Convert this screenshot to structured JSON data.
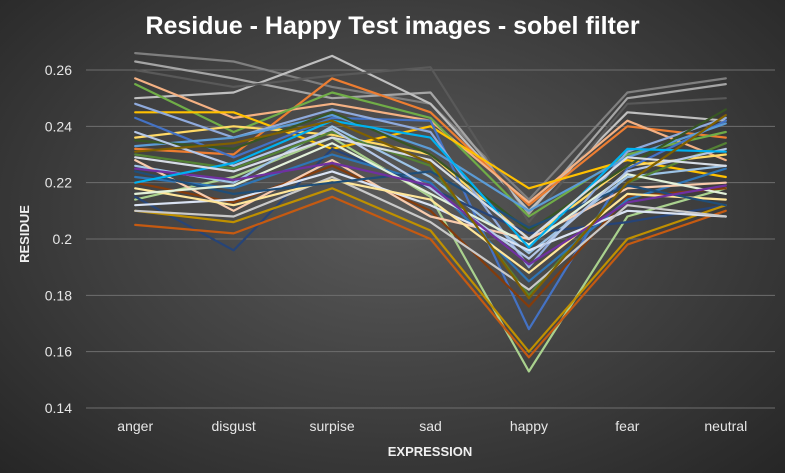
{
  "chart_data": {
    "type": "line",
    "title": "Residue - Happy Test images - sobel filter",
    "xlabel": "EXPRESSION",
    "ylabel": "RESIDUE",
    "categories": [
      "anger",
      "disgust",
      "surpise",
      "sad",
      "happy",
      "fear",
      "neutral"
    ],
    "ylim": [
      0.14,
      0.26
    ],
    "yticks": [
      "0.14",
      "0.16",
      "0.18",
      "0.2",
      "0.22",
      "0.24",
      "0.26"
    ],
    "grid": true,
    "legend": "none",
    "series": [
      {
        "color": "#7f7f7f",
        "values": [
          0.266,
          0.263,
          0.254,
          0.248,
          0.214,
          0.252,
          0.257
        ]
      },
      {
        "color": "#a5a5a5",
        "values": [
          0.263,
          0.257,
          0.25,
          0.252,
          0.209,
          0.25,
          0.255
        ]
      },
      {
        "color": "#bfbfbf",
        "values": [
          0.25,
          0.252,
          0.265,
          0.248,
          0.21,
          0.245,
          0.242
        ]
      },
      {
        "color": "#595959",
        "values": [
          0.26,
          0.254,
          0.258,
          0.261,
          0.206,
          0.248,
          0.25
        ]
      },
      {
        "color": "#ed7d31",
        "values": [
          0.232,
          0.23,
          0.257,
          0.245,
          0.212,
          0.24,
          0.236
        ]
      },
      {
        "color": "#f4b183",
        "values": [
          0.257,
          0.243,
          0.248,
          0.242,
          0.213,
          0.242,
          0.228
        ]
      },
      {
        "color": "#70ad47",
        "values": [
          0.255,
          0.238,
          0.252,
          0.243,
          0.208,
          0.23,
          0.238
        ]
      },
      {
        "color": "#a9d18e",
        "values": [
          0.214,
          0.222,
          0.236,
          0.215,
          0.153,
          0.208,
          0.218
        ]
      },
      {
        "color": "#ffc000",
        "values": [
          0.245,
          0.245,
          0.232,
          0.24,
          0.218,
          0.228,
          0.222
        ]
      },
      {
        "color": "#ffd966",
        "values": [
          0.236,
          0.24,
          0.237,
          0.23,
          0.2,
          0.226,
          0.23
        ]
      },
      {
        "color": "#4472c4",
        "values": [
          0.243,
          0.229,
          0.243,
          0.242,
          0.168,
          0.225,
          0.242
        ]
      },
      {
        "color": "#8faadc",
        "values": [
          0.248,
          0.236,
          0.246,
          0.238,
          0.19,
          0.231,
          0.243
        ]
      },
      {
        "color": "#9dc3e6",
        "values": [
          0.226,
          0.22,
          0.24,
          0.222,
          0.195,
          0.222,
          0.226
        ]
      },
      {
        "color": "#5b9bd5",
        "values": [
          0.233,
          0.236,
          0.244,
          0.232,
          0.21,
          0.229,
          0.241
        ]
      },
      {
        "color": "#264478",
        "values": [
          0.215,
          0.196,
          0.232,
          0.218,
          0.202,
          0.206,
          0.212
        ]
      },
      {
        "color": "#843c0c",
        "values": [
          0.22,
          0.213,
          0.226,
          0.21,
          0.176,
          0.215,
          0.218
        ]
      },
      {
        "color": "#c55a11",
        "values": [
          0.205,
          0.202,
          0.215,
          0.2,
          0.158,
          0.198,
          0.21
        ]
      },
      {
        "color": "#bf9000",
        "values": [
          0.21,
          0.206,
          0.218,
          0.203,
          0.16,
          0.2,
          0.212
        ]
      },
      {
        "color": "#548235",
        "values": [
          0.23,
          0.225,
          0.238,
          0.226,
          0.18,
          0.22,
          0.234
        ]
      },
      {
        "color": "#375623",
        "values": [
          0.235,
          0.232,
          0.245,
          0.23,
          0.203,
          0.226,
          0.246
        ]
      },
      {
        "color": "#2e75b6",
        "values": [
          0.222,
          0.218,
          0.23,
          0.22,
          0.185,
          0.214,
          0.225
        ]
      },
      {
        "color": "#f8cbad",
        "values": [
          0.228,
          0.21,
          0.228,
          0.208,
          0.2,
          0.218,
          0.22
        ]
      },
      {
        "color": "#dae3f3",
        "values": [
          0.212,
          0.214,
          0.224,
          0.212,
          0.196,
          0.21,
          0.208
        ]
      },
      {
        "color": "#c9c9c9",
        "values": [
          0.21,
          0.208,
          0.222,
          0.206,
          0.182,
          0.212,
          0.208
        ]
      },
      {
        "color": "#ffe699",
        "values": [
          0.218,
          0.212,
          0.221,
          0.214,
          0.188,
          0.216,
          0.214
        ]
      },
      {
        "color": "#1f4e79",
        "values": [
          0.224,
          0.216,
          0.22,
          0.224,
          0.204,
          0.219,
          0.212
        ]
      },
      {
        "color": "#e2f0d9",
        "values": [
          0.216,
          0.219,
          0.234,
          0.216,
          0.198,
          0.223,
          0.216
        ]
      },
      {
        "color": "#b4c7e7",
        "values": [
          0.238,
          0.226,
          0.239,
          0.218,
          0.193,
          0.224,
          0.232
        ]
      },
      {
        "color": "#7030a0",
        "values": [
          0.225,
          0.221,
          0.227,
          0.219,
          0.191,
          0.213,
          0.219
        ]
      },
      {
        "color": "#00b0f0",
        "values": [
          0.22,
          0.227,
          0.242,
          0.236,
          0.197,
          0.232,
          0.231
        ]
      },
      {
        "color": "#d6dce5",
        "values": [
          0.229,
          0.224,
          0.236,
          0.228,
          0.2,
          0.229,
          0.226
        ]
      },
      {
        "color": "#806000",
        "values": [
          0.231,
          0.234,
          0.242,
          0.227,
          0.179,
          0.22,
          0.244
        ]
      }
    ]
  }
}
